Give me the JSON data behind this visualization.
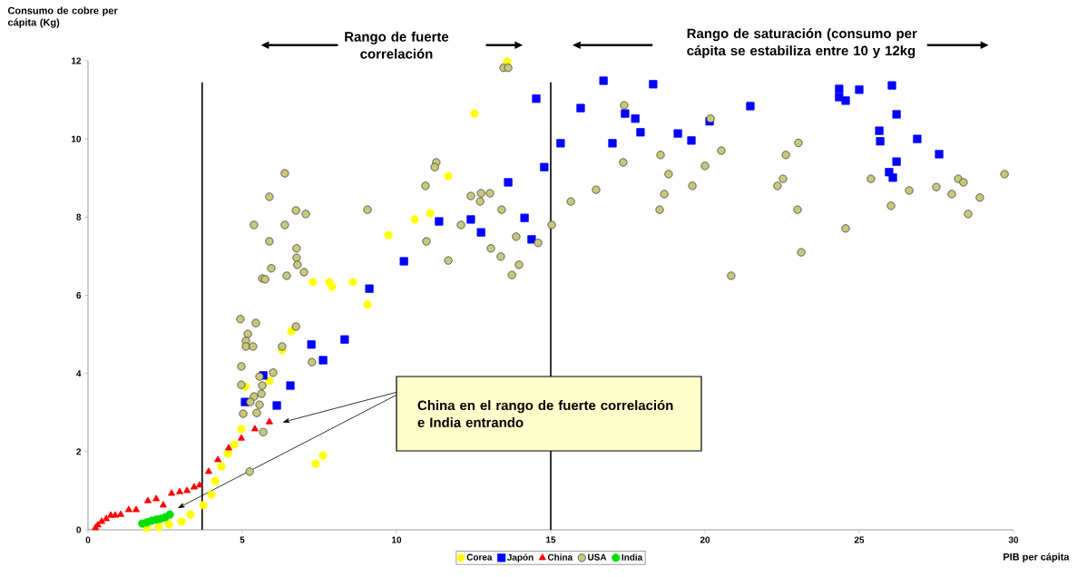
{
  "chart_data": {
    "type": "scatter",
    "xlabel": "PIB per cápita",
    "ylabel": "Consumo de cobre per cápita (Kg)",
    "xlim": [
      0,
      30
    ],
    "ylim": [
      0,
      12
    ],
    "xticks": [
      0,
      5,
      10,
      15,
      20,
      25,
      30
    ],
    "yticks": [
      0,
      2,
      4,
      6,
      8,
      10,
      12
    ],
    "legend": "bottom",
    "ref_lines": [
      {
        "axis": "x",
        "value": 3.7,
        "color": "#000000"
      },
      {
        "axis": "x",
        "value": 15,
        "color": "#000000"
      }
    ],
    "annotations": [
      "Rango de fuerte correlación",
      "Rango de saturación (consumo per cápita se estabiliza entre 10 y 12kg",
      "China en el rango de fuerte correlación e India entrando"
    ],
    "series": [
      {
        "name": "Corea",
        "color": "#ffff00",
        "marker": "circle",
        "x": [
          13.59,
          12.53,
          11.68,
          11.09,
          10.59,
          9.74,
          8.59,
          7.91,
          7.82,
          7.29,
          9.06,
          6.59,
          6.29,
          7.62,
          7.38,
          5.88,
          5.1,
          4.97,
          4.74,
          4.53,
          4.32,
          4.12,
          4.0,
          3.74,
          3.32,
          3.03,
          2.62,
          2.29,
          1.91
        ],
        "values": [
          11.98,
          10.65,
          9.05,
          8.1,
          7.94,
          7.54,
          6.34,
          6.22,
          6.34,
          6.34,
          5.76,
          5.08,
          4.6,
          1.9,
          1.69,
          3.81,
          3.66,
          2.58,
          2.18,
          1.95,
          1.62,
          1.25,
          0.9,
          0.63,
          0.39,
          0.21,
          0.14,
          0.07,
          0.05
        ]
      },
      {
        "name": "Japón",
        "color": "#0000ff",
        "marker": "square",
        "x": [
          14.53,
          14.79,
          13.62,
          14.15,
          11.38,
          12.41,
          12.74,
          14.38,
          10.24,
          16.71,
          18.32,
          15.97,
          17.41,
          17.74,
          17.91,
          15.32,
          17.0,
          19.12,
          19.56,
          20.15,
          21.47,
          24.35,
          24.35,
          24.56,
          25.0,
          26.06,
          26.21,
          25.65,
          25.68,
          26.88,
          27.59,
          26.21,
          25.97,
          26.09,
          9.12,
          8.32,
          7.24,
          7.62,
          6.56,
          6.12,
          5.68,
          5.09
        ],
        "values": [
          11.03,
          9.28,
          8.89,
          7.98,
          7.89,
          7.94,
          7.61,
          7.43,
          6.87,
          11.49,
          11.4,
          10.79,
          10.65,
          10.52,
          10.17,
          9.89,
          9.89,
          10.14,
          9.96,
          10.45,
          10.84,
          11.28,
          11.07,
          10.98,
          11.26,
          11.37,
          10.63,
          10.21,
          9.94,
          10.0,
          9.61,
          9.42,
          9.15,
          9.01,
          6.17,
          4.87,
          4.74,
          4.34,
          3.69,
          3.18,
          3.95,
          3.27
        ]
      },
      {
        "name": "China",
        "color": "#ff0000",
        "marker": "triangle",
        "x": [
          5.88,
          5.41,
          4.97,
          4.56,
          4.21,
          3.91,
          3.62,
          3.44,
          3.21,
          2.97,
          2.71,
          2.44,
          2.21,
          1.94,
          1.56,
          1.32,
          1.06,
          0.88,
          0.74,
          0.59,
          0.44,
          0.32,
          0.24
        ],
        "values": [
          2.76,
          2.58,
          2.34,
          2.09,
          1.79,
          1.49,
          1.14,
          1.09,
          1.0,
          0.97,
          0.93,
          0.63,
          0.79,
          0.74,
          0.51,
          0.51,
          0.39,
          0.37,
          0.37,
          0.28,
          0.21,
          0.12,
          0.05
        ]
      },
      {
        "name": "USA",
        "color": "#c8c87a",
        "marker": "circle",
        "x": [
          6.38,
          5.88,
          6.74,
          5.38,
          6.38,
          7.06,
          5.88,
          6.76,
          6.76,
          6.79,
          5.94,
          7.0,
          6.44,
          5.65,
          5.74,
          6.74,
          4.94,
          5.44,
          5.18,
          5.12,
          5.12,
          5.35,
          6.29,
          4.97,
          7.26,
          6.0,
          5.56,
          4.97,
          5.65,
          5.62,
          5.38,
          5.26,
          5.56,
          5.03,
          5.47,
          5.68,
          5.24,
          9.06,
          10.94,
          11.29,
          11.24,
          10.97,
          11.68,
          12.41,
          12.74,
          13.03,
          12.71,
          13.41,
          12.09,
          13.88,
          13.06,
          13.38,
          13.97,
          13.74,
          14.59,
          15.03,
          13.47,
          13.62,
          15.65,
          16.47,
          17.35,
          17.38,
          18.53,
          18.56,
          18.82,
          18.68,
          19.59,
          20.0,
          20.18,
          20.53,
          20.85,
          23.03,
          22.62,
          22.53,
          22.35,
          23.0,
          24.56,
          23.12,
          26.03,
          26.62,
          27.5,
          28.0,
          28.21,
          28.38,
          28.91,
          28.53,
          29.71,
          25.38
        ],
        "values": [
          9.12,
          8.52,
          8.17,
          7.8,
          7.8,
          8.08,
          7.38,
          7.2,
          6.96,
          6.78,
          6.69,
          6.59,
          6.5,
          6.43,
          6.41,
          5.2,
          5.39,
          5.29,
          5.01,
          4.83,
          4.69,
          4.69,
          4.69,
          4.18,
          4.29,
          4.02,
          3.92,
          3.71,
          3.69,
          3.48,
          3.41,
          3.27,
          3.2,
          2.97,
          2.99,
          2.5,
          1.49,
          8.19,
          8.8,
          9.4,
          9.28,
          7.38,
          6.89,
          8.54,
          8.61,
          8.61,
          8.4,
          8.19,
          7.8,
          7.5,
          7.2,
          6.99,
          6.78,
          6.52,
          7.34,
          7.8,
          11.82,
          11.82,
          8.4,
          8.7,
          9.4,
          10.86,
          8.19,
          9.59,
          9.1,
          8.59,
          8.8,
          9.31,
          10.52,
          9.7,
          6.5,
          9.9,
          9.59,
          8.98,
          8.8,
          8.19,
          7.71,
          7.1,
          8.29,
          8.68,
          8.77,
          8.59,
          8.98,
          8.89,
          8.5,
          8.08,
          9.1,
          8.98
        ]
      },
      {
        "name": "India",
        "color": "#00e000",
        "marker": "circle",
        "x": [
          1.76,
          1.91,
          2.06,
          2.21,
          2.35,
          2.5,
          2.65
        ],
        "values": [
          0.16,
          0.19,
          0.23,
          0.26,
          0.28,
          0.32,
          0.39
        ]
      }
    ]
  }
}
